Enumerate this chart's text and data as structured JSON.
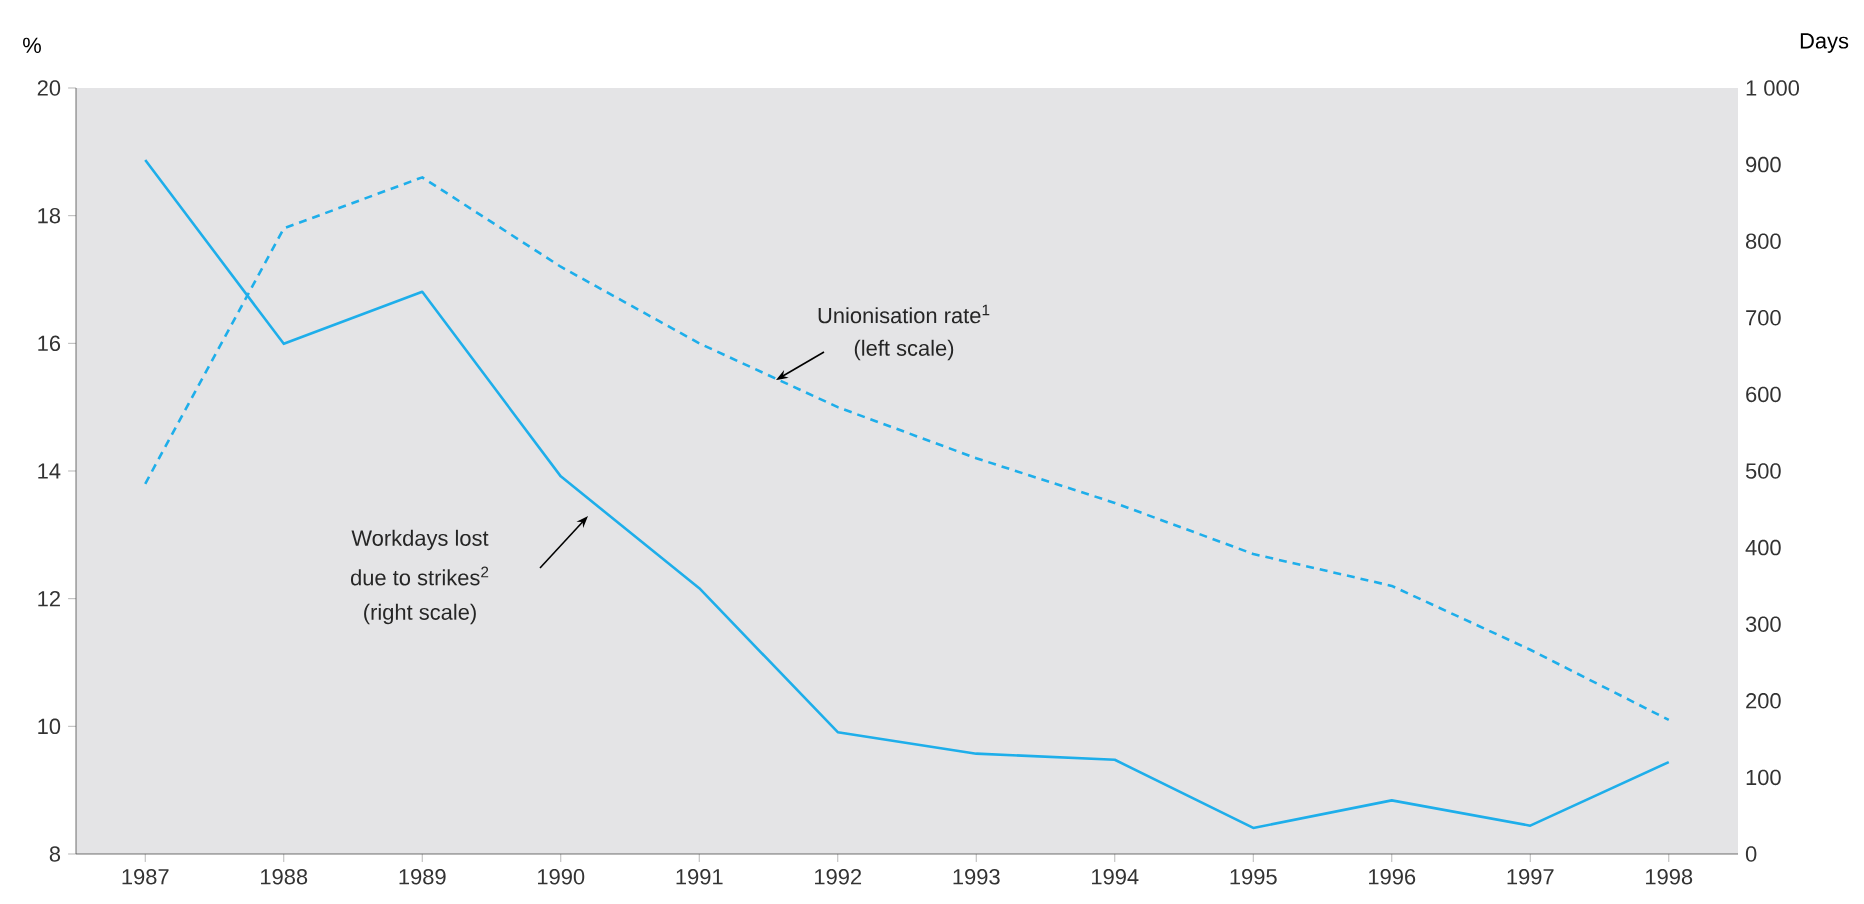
{
  "chart_data": {
    "type": "line",
    "x": [
      1987,
      1988,
      1989,
      1990,
      1991,
      1992,
      1993,
      1994,
      1995,
      1996,
      1997,
      1998
    ],
    "xlim": [
      1986.5,
      1998.5
    ],
    "xticks": [
      1987,
      1988,
      1989,
      1990,
      1991,
      1992,
      1993,
      1994,
      1995,
      1996,
      1997,
      1998
    ],
    "ylim": [
      8,
      20
    ],
    "yticks": [
      8,
      10,
      12,
      14,
      16,
      18,
      20
    ],
    "y2lim": [
      0,
      1000
    ],
    "y2ticks": [
      0,
      100,
      200,
      300,
      400,
      500,
      600,
      700,
      800,
      900,
      {
        "value": 1000,
        "label": "1 000"
      }
    ],
    "ylabel": "%",
    "y2label": "Days",
    "series": [
      {
        "color": "#1eaeea",
        "line_style": "dashed",
        "values": [
          13.8,
          17.8,
          18.6,
          17.2,
          16.0,
          15.0,
          14.2,
          13.5,
          12.7,
          12.2,
          11.2,
          10.1
        ]
      },
      {
        "color": "#1eaeea",
        "line_style": "solid",
        "axis": "y2",
        "values": [
          906,
          666,
          734,
          493,
          347,
          159,
          131,
          123,
          34,
          70,
          37,
          120
        ]
      }
    ],
    "annotations": [
      "Unionisation rate$^{1}$",
      "(left scale)",
      "Workdays lost",
      "due to strikes$^{2}$",
      "(right scale)"
    ]
  }
}
